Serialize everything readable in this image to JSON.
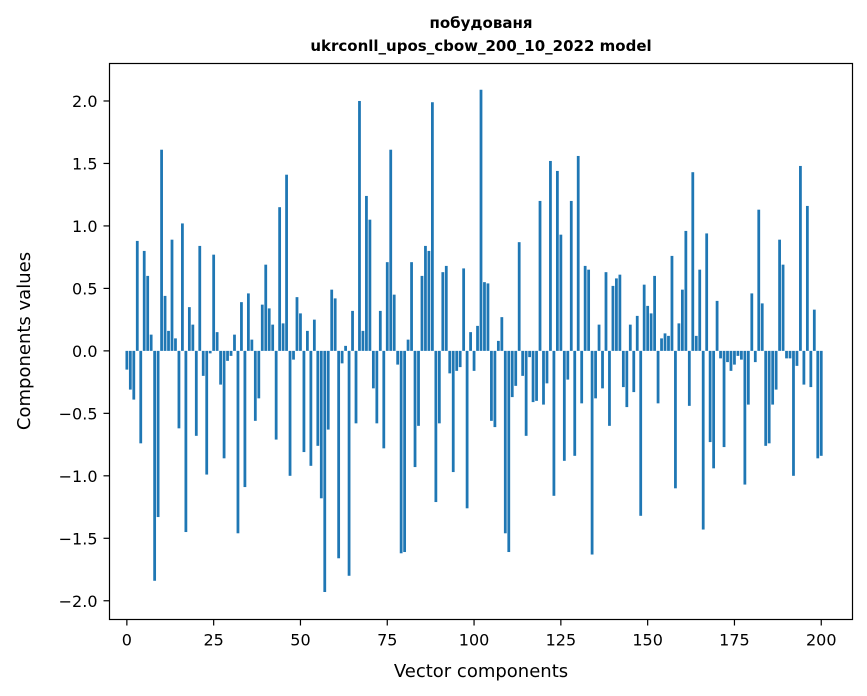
{
  "chart_data": {
    "type": "bar",
    "title_line1": "побудованя",
    "title_line2": "ukrconll_upos_cbow_200_10_2022 model",
    "xlabel": "Vector components",
    "ylabel": "Components values",
    "xlim": [
      -5,
      209
    ],
    "ylim": [
      -2.15,
      2.3
    ],
    "x_ticks": [
      0,
      25,
      50,
      75,
      100,
      125,
      150,
      175,
      200
    ],
    "x_tick_labels": [
      "0",
      "25",
      "50",
      "75",
      "100",
      "125",
      "150",
      "175",
      "200"
    ],
    "y_ticks": [
      2.0,
      1.5,
      1.0,
      0.5,
      0.0,
      -0.5,
      -1.0,
      -1.5,
      -2.0
    ],
    "y_tick_labels": [
      "2.0",
      "1.5",
      "1.0",
      "0.5",
      "0.0",
      "−0.5",
      "−1.0",
      "−1.5",
      "−2.0"
    ],
    "grid": false,
    "bar_color": "#1f77b4",
    "values": [
      -0.15,
      -0.31,
      -0.39,
      0.88,
      -0.74,
      0.8,
      0.6,
      0.13,
      -1.84,
      -1.33,
      1.61,
      0.44,
      0.16,
      0.89,
      0.1,
      -0.62,
      1.02,
      -1.45,
      0.35,
      0.21,
      -0.68,
      0.84,
      -0.2,
      -0.99,
      -0.02,
      0.77,
      0.15,
      -0.27,
      -0.86,
      -0.08,
      -0.04,
      0.13,
      -1.46,
      0.39,
      -1.09,
      0.46,
      0.09,
      -0.56,
      -0.38,
      0.37,
      0.69,
      0.34,
      0.21,
      -0.71,
      1.15,
      0.22,
      1.41,
      -1.0,
      -0.07,
      0.43,
      0.3,
      -0.81,
      0.16,
      -0.92,
      0.25,
      -0.76,
      -1.18,
      -1.93,
      -0.63,
      0.49,
      0.42,
      -1.66,
      -0.1,
      0.04,
      -1.8,
      0.32,
      -0.58,
      2.0,
      0.16,
      1.24,
      1.05,
      -0.3,
      -0.58,
      0.32,
      -0.78,
      0.71,
      1.61,
      0.45,
      -0.11,
      -1.62,
      -1.61,
      0.09,
      0.71,
      -0.93,
      -0.6,
      0.6,
      0.84,
      0.8,
      1.99,
      -1.21,
      -0.58,
      0.63,
      0.68,
      -0.18,
      -0.97,
      -0.16,
      -0.13,
      0.66,
      -1.26,
      0.15,
      -0.16,
      0.2,
      2.09,
      0.55,
      0.54,
      -0.56,
      -0.61,
      0.08,
      0.27,
      -1.46,
      -1.61,
      -0.37,
      -0.28,
      0.87,
      -0.2,
      -0.68,
      -0.05,
      -0.41,
      -0.4,
      1.2,
      -0.43,
      -0.26,
      1.52,
      -1.16,
      1.44,
      0.93,
      -0.88,
      -0.23,
      1.2,
      -0.84,
      1.56,
      -0.42,
      0.68,
      0.65,
      -1.63,
      -0.38,
      0.21,
      -0.3,
      0.63,
      -0.6,
      0.52,
      0.58,
      0.61,
      -0.29,
      -0.45,
      0.21,
      -0.33,
      0.28,
      -1.32,
      0.53,
      0.36,
      0.3,
      0.6,
      -0.42,
      0.1,
      0.14,
      0.12,
      0.76,
      -1.1,
      0.22,
      0.49,
      0.96,
      -0.44,
      1.43,
      0.12,
      0.65,
      -1.43,
      0.94,
      -0.73,
      -0.94,
      0.4,
      -0.06,
      -0.77,
      -0.09,
      -0.16,
      -0.11,
      -0.04,
      -0.07,
      -1.07,
      -0.43,
      0.46,
      -0.09,
      1.13,
      0.38,
      -0.76,
      -0.74,
      -0.43,
      -0.31,
      0.89,
      0.69,
      -0.06,
      -0.06,
      -1.0,
      -0.12,
      1.48,
      -0.27,
      1.16,
      -0.29,
      0.33,
      -0.86,
      -0.84
    ]
  }
}
